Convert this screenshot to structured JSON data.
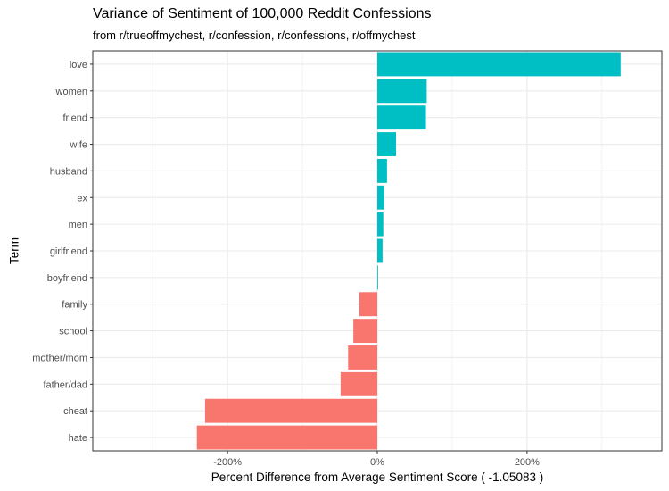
{
  "chart_data": {
    "type": "bar",
    "orientation": "horizontal",
    "title": "Variance of Sentiment of 100,000 Reddit Confessions",
    "subtitle": "from r/trueoffmychest, r/confession, r/confessions, r/offmychest",
    "xlabel": "Percent Difference from Average Sentiment Score ( -1.05083 )",
    "ylabel": "Term",
    "categories": [
      "love",
      "women",
      "friend",
      "wife",
      "husband",
      "ex",
      "men",
      "girlfriend",
      "boyfriend",
      "family",
      "school",
      "mother/mom",
      "father/dad",
      "cheat",
      "hate"
    ],
    "values": [
      325,
      66,
      65,
      25,
      13,
      9,
      8,
      7,
      1,
      -24,
      -32,
      -39,
      -49,
      -230,
      -241
    ],
    "xlim": [
      -380,
      380
    ],
    "xticks": [
      -200,
      0,
      200
    ],
    "xtick_labels": [
      "-200%",
      "0%",
      "200%"
    ],
    "grid": true,
    "legend": "none",
    "colors": {
      "positive": "#00BFC4",
      "negative": "#F8766D",
      "grid": "#ebebeb",
      "border": "#333333"
    }
  }
}
